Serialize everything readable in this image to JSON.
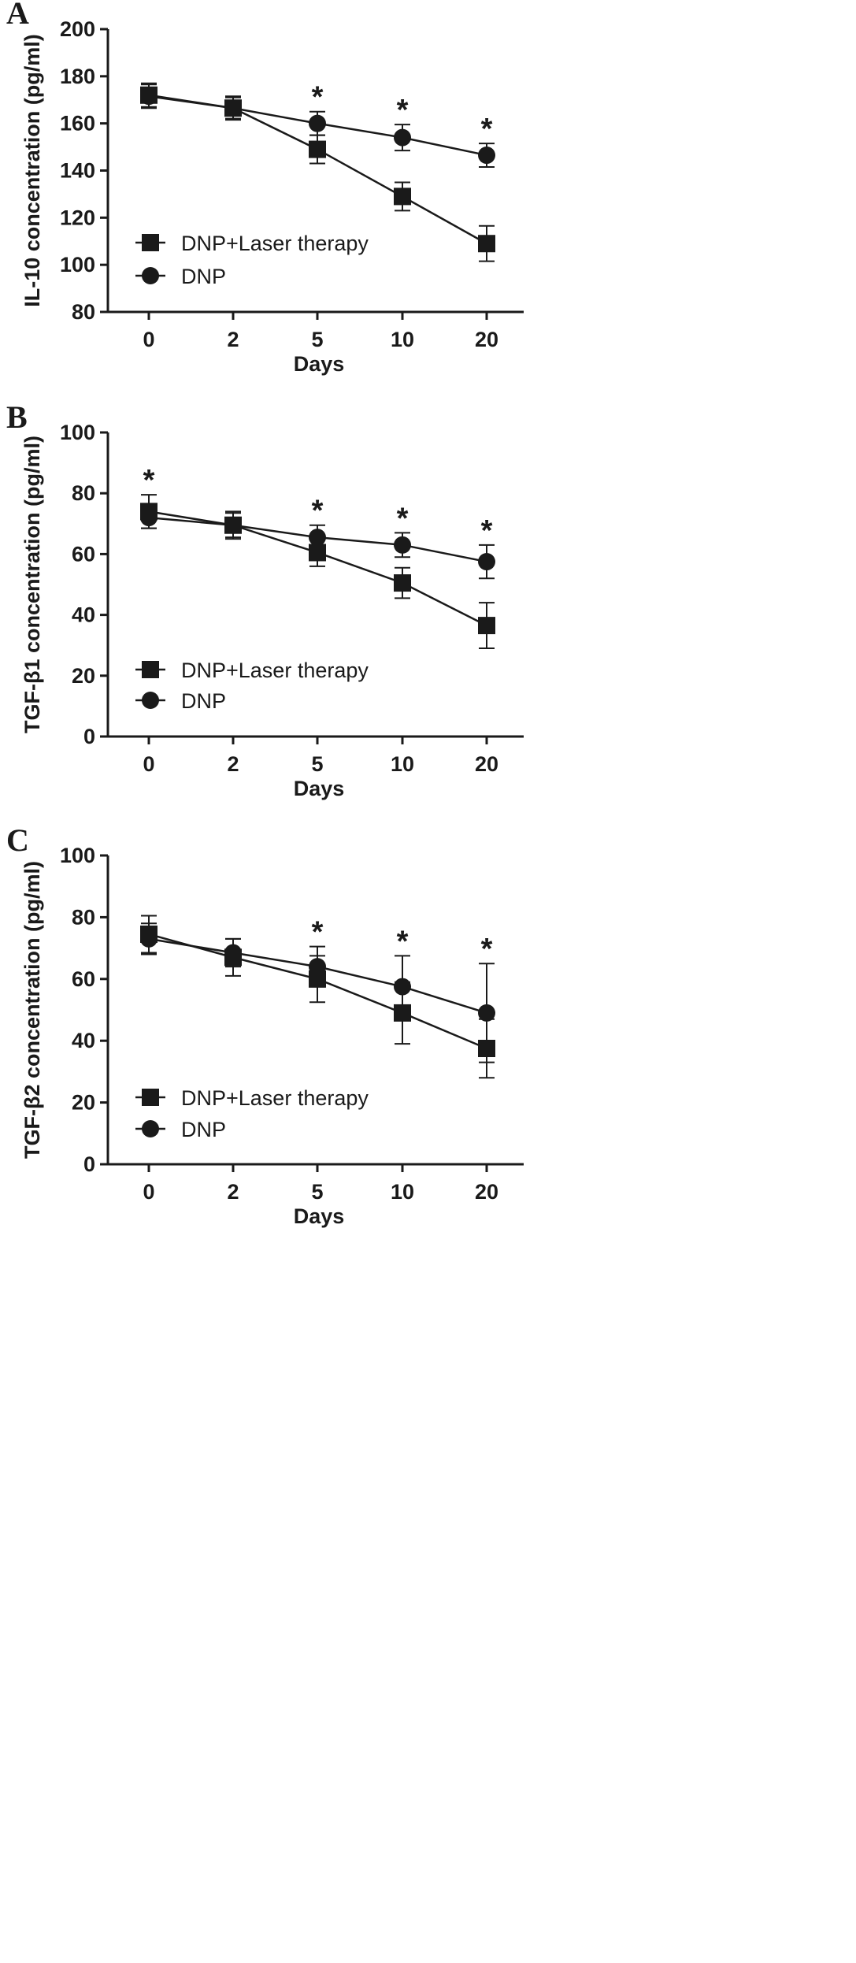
{
  "chart_data": [
    {
      "panel": "A",
      "type": "line",
      "xlabel": "Days",
      "ylabel": "IL-10 concentration (pg/ml)",
      "categories": [
        "0",
        "2",
        "5",
        "10",
        "20"
      ],
      "ylim": [
        80,
        200
      ],
      "yticks": [
        80,
        100,
        120,
        140,
        160,
        180,
        200
      ],
      "grid": false,
      "legend_position": "lower-left",
      "series": [
        {
          "name": "DNP+Laser therapy",
          "marker": "square",
          "values": [
            172,
            166.5,
            149,
            129,
            109
          ],
          "errors": [
            5,
            5,
            6,
            6,
            7.5
          ]
        },
        {
          "name": "DNP",
          "marker": "circle",
          "values": [
            171.5,
            166.5,
            160,
            154,
            146.5
          ],
          "errors": [
            5,
            4.5,
            5,
            5.5,
            5
          ]
        }
      ],
      "significance": [
        "",
        "",
        "*",
        "*",
        "*"
      ]
    },
    {
      "panel": "B",
      "type": "line",
      "xlabel": "Days",
      "ylabel": "TGF-β1 concentration (pg/ml)",
      "categories": [
        "0",
        "2",
        "5",
        "10",
        "20"
      ],
      "ylim": [
        0,
        100
      ],
      "yticks": [
        0,
        20,
        40,
        60,
        80,
        100
      ],
      "grid": false,
      "legend_position": "lower-left",
      "series": [
        {
          "name": "DNP+Laser therapy",
          "marker": "square",
          "values": [
            74,
            69.5,
            60.5,
            50.5,
            36.5
          ],
          "errors": [
            5.5,
            4.5,
            4.5,
            5,
            7.5
          ]
        },
        {
          "name": "DNP",
          "marker": "circle",
          "values": [
            72,
            69.5,
            65.5,
            63,
            57.5
          ],
          "errors": [
            3.5,
            4,
            4,
            4,
            5.5
          ]
        }
      ],
      "significance": [
        "*",
        "",
        "*",
        "*",
        "*"
      ]
    },
    {
      "panel": "C",
      "type": "line",
      "xlabel": "Days",
      "ylabel": "TGF-β2 concentration (pg/ml)",
      "categories": [
        "0",
        "2",
        "5",
        "10",
        "20"
      ],
      "ylim": [
        0,
        100
      ],
      "yticks": [
        0,
        20,
        40,
        60,
        80,
        100
      ],
      "grid": false,
      "legend_position": "lower-left",
      "series": [
        {
          "name": "DNP+Laser therapy",
          "marker": "square",
          "values": [
            74.5,
            67,
            60,
            49,
            37.5
          ],
          "errors": [
            6,
            6,
            7.5,
            10,
            9.5
          ]
        },
        {
          "name": "DNP",
          "marker": "circle",
          "values": [
            73,
            68.5,
            64,
            57.5,
            49
          ],
          "errors": [
            5,
            4.5,
            6.5,
            10,
            16
          ]
        }
      ],
      "significance": [
        "",
        "",
        "*",
        "*",
        "*"
      ]
    }
  ]
}
